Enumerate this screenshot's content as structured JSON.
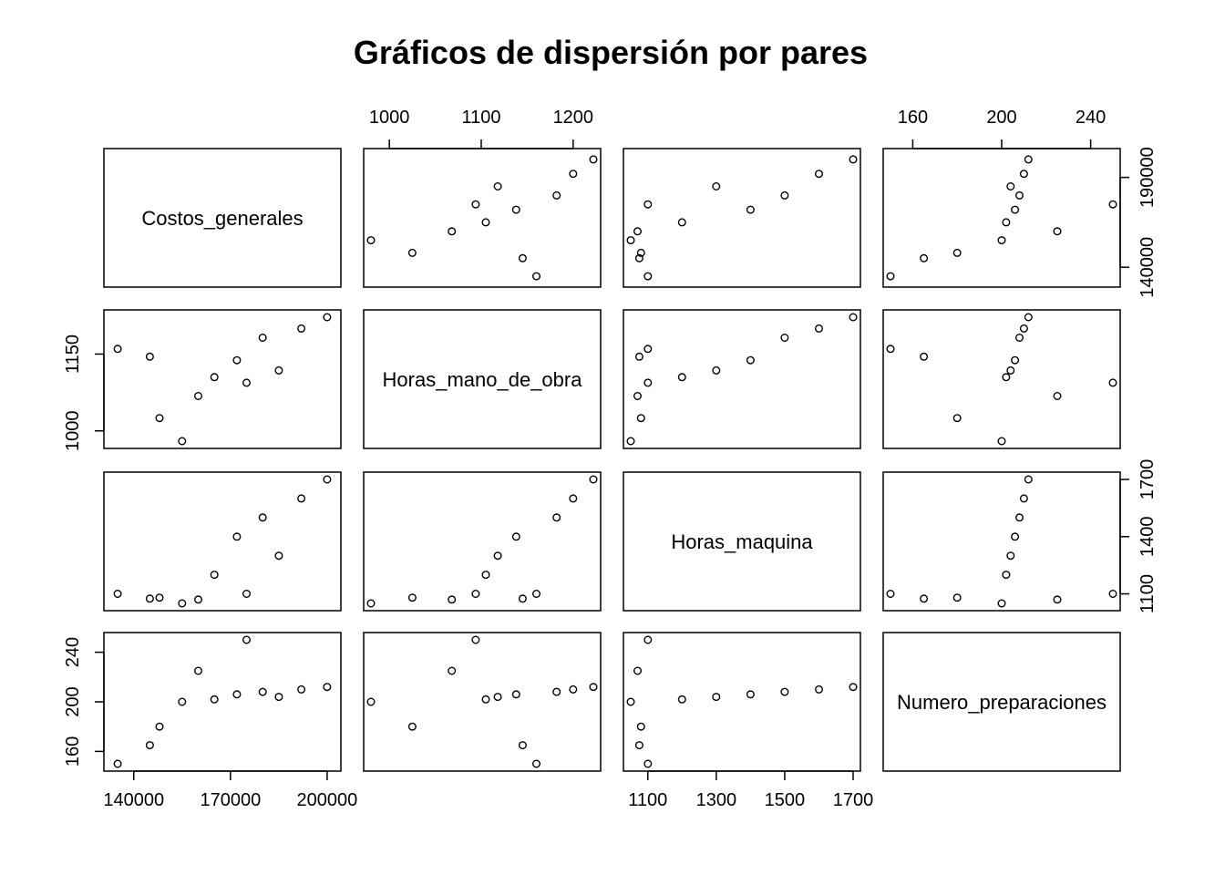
{
  "chart_data": {
    "type": "scatter",
    "title": "Gráficos de dispersión por pares",
    "variables": [
      {
        "name": "Costos_generales",
        "values": [
          155000,
          148000,
          160000,
          165000,
          185000,
          175000,
          172000,
          135000,
          145000,
          192000,
          180000,
          200000
        ],
        "ticks": [
          140000,
          170000,
          200000
        ],
        "row_ticks": [
          140000,
          190000
        ],
        "range": [
          133000,
          202000
        ]
      },
      {
        "name": "Horas_mano_de_obra",
        "values": [
          980,
          1025,
          1068,
          1105,
          1118,
          1094,
          1138,
          1160,
          1145,
          1200,
          1182,
          1222
        ],
        "ticks": [
          1000,
          1100,
          1200
        ],
        "row_ticks": [
          1000,
          1150
        ],
        "range": [
          980,
          1222
        ]
      },
      {
        "name": "Horas_maquina",
        "values": [
          1050,
          1080,
          1070,
          1200,
          1300,
          1100,
          1400,
          1100,
          1075,
          1600,
          1500,
          1700
        ],
        "ticks": [
          1100,
          1300,
          1500,
          1700
        ],
        "row_ticks": [
          1100,
          1400,
          1700
        ],
        "range": [
          1050,
          1700
        ]
      },
      {
        "name": "Numero_preparaciones",
        "values": [
          200,
          180,
          225,
          202,
          204,
          250,
          206,
          150,
          165,
          210,
          208,
          212
        ],
        "ticks": [
          160,
          200,
          240
        ],
        "row_ticks": [
          160,
          200,
          240
        ],
        "range": [
          150,
          250
        ]
      }
    ],
    "grid": false,
    "legend": "none"
  }
}
